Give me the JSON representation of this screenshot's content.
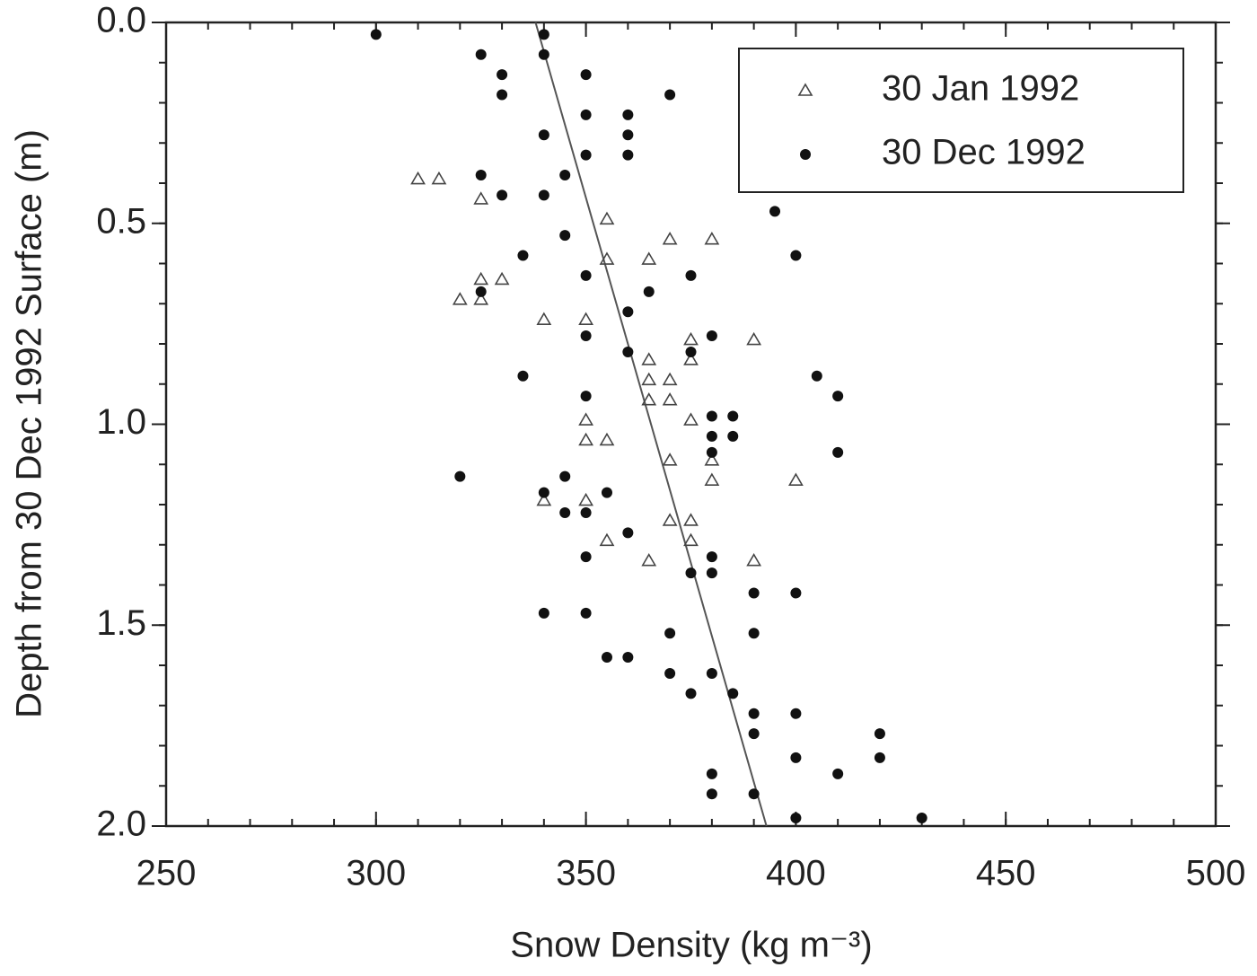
{
  "chart_data": {
    "type": "scatter",
    "x_label": "Snow Density (kg m⁻³)",
    "y_label": "Depth from 30 Dec 1992 Surface (m)",
    "xlim": [
      250,
      500
    ],
    "xticks": [
      250,
      300,
      350,
      400,
      450,
      500
    ],
    "ylim": [
      0,
      2
    ],
    "yticks": [
      {
        "value": 0,
        "label": "0.0"
      },
      {
        "value": 0.5,
        "label": "0.5"
      },
      {
        "value": 1,
        "label": "1.0"
      },
      {
        "value": 1.5,
        "label": "1.5"
      },
      {
        "value": 2,
        "label": "2.0"
      }
    ],
    "y_inverted": true,
    "minor_ticks": {
      "x": 10,
      "y": 0.1
    },
    "legend_position": "upper right",
    "series": [
      {
        "name": "30 Jan 1992",
        "color": "#444444",
        "marker": "triangle-open",
        "x": [
          310,
          315,
          325,
          325,
          330,
          320,
          325,
          355,
          355,
          365,
          370,
          380,
          340,
          350,
          375,
          390,
          375,
          365,
          365,
          370,
          365,
          370,
          350,
          375,
          350,
          355,
          370,
          380,
          380,
          400,
          340,
          350,
          370,
          375,
          355,
          375,
          365,
          390
        ],
        "values": [
          0.39,
          0.39,
          0.44,
          0.64,
          0.64,
          0.69,
          0.69,
          0.49,
          0.59,
          0.59,
          0.54,
          0.54,
          0.74,
          0.74,
          0.79,
          0.79,
          0.84,
          0.84,
          0.89,
          0.89,
          0.94,
          0.94,
          0.99,
          0.99,
          1.04,
          1.04,
          1.09,
          1.09,
          1.14,
          1.14,
          1.19,
          1.19,
          1.24,
          1.24,
          1.29,
          1.29,
          1.34,
          1.34
        ]
      },
      {
        "name": "30 Dec 1992",
        "color": "#111111",
        "marker": "circle-filled",
        "x": [
          300,
          340,
          325,
          340,
          330,
          350,
          330,
          370,
          350,
          360,
          340,
          360,
          350,
          360,
          325,
          345,
          330,
          340,
          395,
          345,
          335,
          400,
          350,
          375,
          365,
          325,
          360,
          350,
          380,
          360,
          375,
          335,
          405,
          350,
          410,
          380,
          385,
          380,
          385,
          380,
          410,
          320,
          345,
          340,
          355,
          345,
          350,
          360,
          350,
          380,
          375,
          380,
          390,
          400,
          340,
          350,
          370,
          390,
          355,
          360,
          370,
          380,
          375,
          385,
          390,
          400,
          390,
          420,
          400,
          420,
          380,
          410,
          380,
          390,
          400,
          430
        ],
        "values": [
          0.03,
          0.03,
          0.08,
          0.08,
          0.13,
          0.13,
          0.18,
          0.18,
          0.23,
          0.23,
          0.28,
          0.28,
          0.33,
          0.33,
          0.38,
          0.38,
          0.43,
          0.43,
          0.47,
          0.53,
          0.58,
          0.58,
          0.63,
          0.63,
          0.67,
          0.67,
          0.72,
          0.78,
          0.78,
          0.82,
          0.82,
          0.88,
          0.88,
          0.93,
          0.93,
          0.98,
          0.98,
          1.03,
          1.03,
          1.07,
          1.07,
          1.13,
          1.13,
          1.17,
          1.17,
          1.22,
          1.22,
          1.27,
          1.33,
          1.33,
          1.37,
          1.37,
          1.42,
          1.42,
          1.47,
          1.47,
          1.52,
          1.52,
          1.58,
          1.58,
          1.62,
          1.62,
          1.67,
          1.67,
          1.72,
          1.72,
          1.77,
          1.77,
          1.83,
          1.83,
          1.87,
          1.87,
          1.92,
          1.92,
          1.98,
          1.98
        ]
      }
    ],
    "trend_line": {
      "color": "#555555",
      "x": [
        338,
        393
      ],
      "values": [
        0,
        2
      ]
    }
  }
}
